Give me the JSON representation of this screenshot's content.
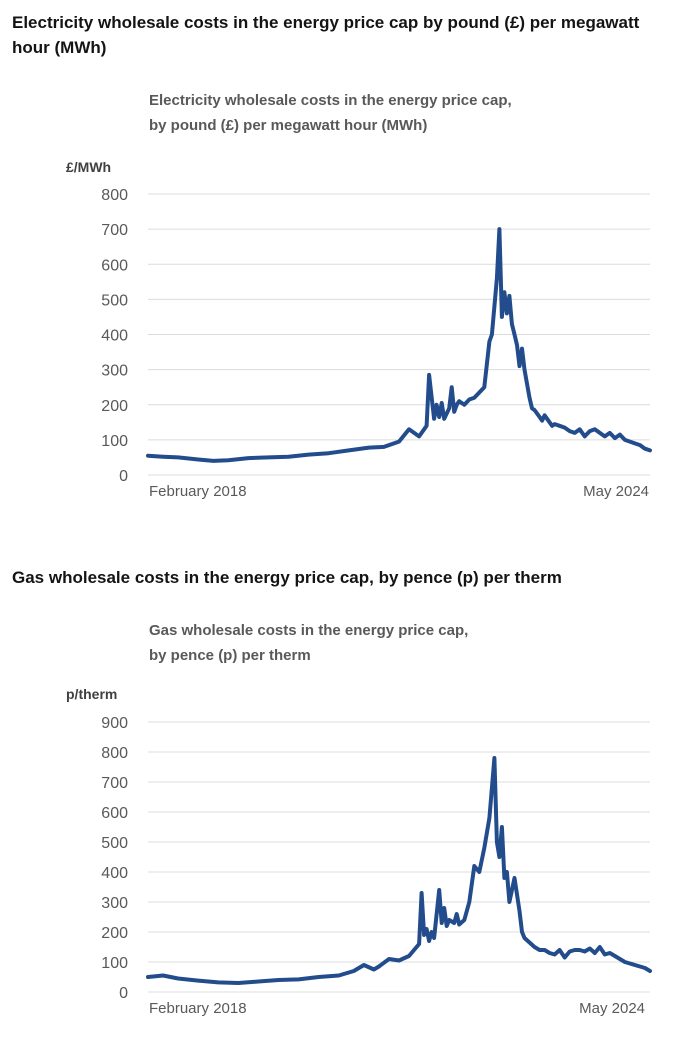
{
  "headings": {
    "electricity": "Electricity wholesale costs in the energy price cap by pound (£) per megawatt hour (MWh)",
    "gas": "Gas wholesale costs in the energy price cap, by pence (p) per therm"
  },
  "colors": {
    "series": "#234c8c",
    "grid": "#dcdcdc",
    "text": "#595959"
  },
  "chart_data": [
    {
      "type": "line",
      "title_lines": [
        "Electricity wholesale costs in the energy price cap,",
        "by pound (£) per megawatt hour (MWh)"
      ],
      "ylabel": "£/MWh",
      "ylim": [
        0,
        800
      ],
      "yticks": [
        0,
        100,
        200,
        300,
        400,
        500,
        600,
        700,
        800
      ],
      "x_start_label": "February 2018",
      "x_end_label": "May 2024",
      "grid": true,
      "series": [
        {
          "x": [
            0,
            0.03,
            0.06,
            0.1,
            0.13,
            0.16,
            0.2,
            0.24,
            0.28,
            0.32,
            0.36,
            0.4,
            0.44,
            0.47,
            0.5,
            0.52,
            0.54,
            0.555,
            0.56,
            0.57,
            0.575,
            0.58,
            0.585,
            0.59,
            0.6,
            0.605,
            0.61,
            0.615,
            0.62,
            0.63,
            0.64,
            0.65,
            0.66,
            0.67,
            0.68,
            0.685,
            0.69,
            0.695,
            0.7,
            0.705,
            0.71,
            0.715,
            0.72,
            0.725,
            0.73,
            0.735,
            0.74,
            0.745,
            0.75,
            0.76,
            0.765,
            0.77,
            0.78,
            0.785,
            0.79,
            0.8,
            0.805,
            0.81,
            0.82,
            0.83,
            0.84,
            0.85,
            0.86,
            0.87,
            0.88,
            0.89,
            0.9,
            0.91,
            0.92,
            0.93,
            0.94,
            0.95,
            0.96,
            0.97,
            0.98,
            0.99,
            1.0
          ],
          "y": [
            55,
            52,
            50,
            44,
            40,
            42,
            48,
            50,
            52,
            58,
            62,
            70,
            78,
            80,
            95,
            130,
            110,
            140,
            285,
            160,
            200,
            165,
            205,
            160,
            190,
            250,
            180,
            200,
            210,
            200,
            215,
            220,
            235,
            250,
            380,
            400,
            480,
            560,
            700,
            450,
            520,
            460,
            510,
            430,
            400,
            370,
            310,
            360,
            300,
            220,
            190,
            185,
            165,
            155,
            170,
            150,
            140,
            145,
            140,
            135,
            125,
            120,
            130,
            110,
            125,
            130,
            120,
            110,
            120,
            105,
            115,
            100,
            95,
            90,
            85,
            75,
            70
          ]
        }
      ]
    },
    {
      "type": "line",
      "title_lines": [
        "Gas wholesale costs in the energy price cap,",
        "by pence (p) per therm"
      ],
      "ylabel": "p/therm",
      "ylim": [
        0,
        900
      ],
      "yticks": [
        0,
        100,
        200,
        300,
        400,
        500,
        600,
        700,
        800,
        900
      ],
      "x_start_label": "February 2018",
      "x_end_label": "May 2024",
      "grid": true,
      "series": [
        {
          "x": [
            0,
            0.03,
            0.06,
            0.1,
            0.14,
            0.18,
            0.22,
            0.26,
            0.3,
            0.34,
            0.38,
            0.41,
            0.43,
            0.45,
            0.46,
            0.48,
            0.5,
            0.52,
            0.54,
            0.545,
            0.55,
            0.555,
            0.56,
            0.565,
            0.57,
            0.58,
            0.585,
            0.59,
            0.595,
            0.6,
            0.61,
            0.615,
            0.62,
            0.63,
            0.64,
            0.65,
            0.66,
            0.67,
            0.68,
            0.69,
            0.695,
            0.7,
            0.705,
            0.71,
            0.715,
            0.72,
            0.73,
            0.74,
            0.745,
            0.75,
            0.76,
            0.77,
            0.78,
            0.79,
            0.8,
            0.81,
            0.82,
            0.83,
            0.84,
            0.85,
            0.86,
            0.87,
            0.88,
            0.89,
            0.9,
            0.91,
            0.92,
            0.93,
            0.94,
            0.95,
            0.96,
            0.97,
            0.98,
            0.99,
            1.0
          ],
          "y": [
            50,
            55,
            45,
            38,
            32,
            30,
            35,
            40,
            42,
            50,
            55,
            70,
            90,
            75,
            85,
            110,
            105,
            120,
            160,
            330,
            190,
            210,
            170,
            200,
            180,
            340,
            230,
            280,
            220,
            240,
            230,
            260,
            225,
            240,
            300,
            420,
            400,
            480,
            580,
            780,
            500,
            450,
            550,
            380,
            400,
            300,
            380,
            270,
            200,
            180,
            165,
            150,
            140,
            140,
            130,
            125,
            140,
            115,
            135,
            140,
            140,
            135,
            145,
            130,
            150,
            125,
            130,
            120,
            110,
            100,
            95,
            90,
            85,
            80,
            70
          ]
        }
      ]
    }
  ]
}
